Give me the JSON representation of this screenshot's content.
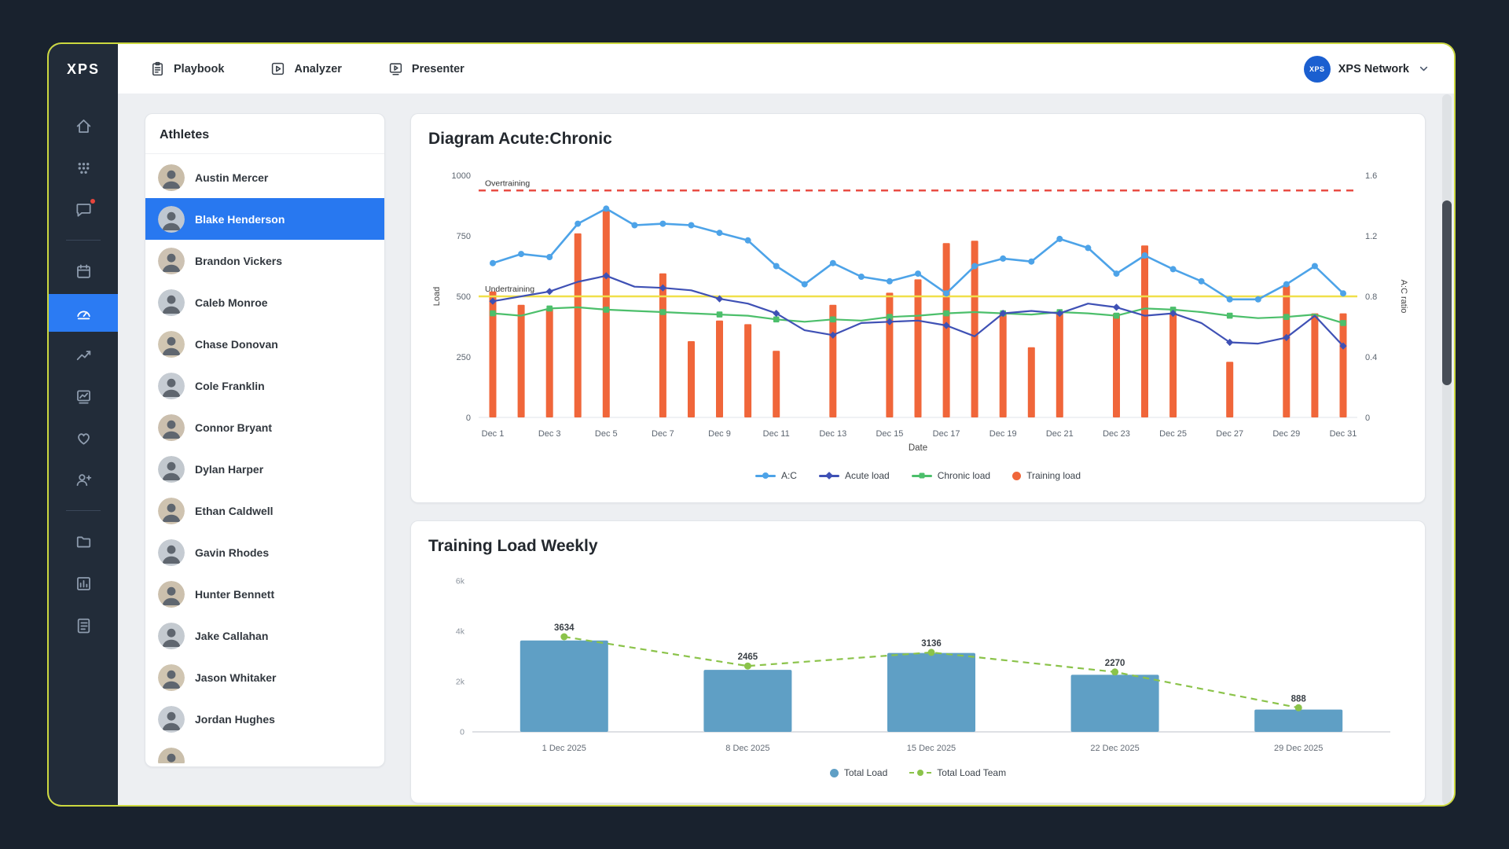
{
  "app": {
    "logo_text": "XPS",
    "account_label": "XPS Network",
    "account_logo_text": "XPS"
  },
  "theme": {
    "accent_blue": "#2878f0",
    "sidebar_dark": "#222c39",
    "window_border": "#ccd83f"
  },
  "topbar": {
    "tabs": [
      {
        "label": "Playbook",
        "icon": "playbook-icon"
      },
      {
        "label": "Analyzer",
        "icon": "analyzer-icon"
      },
      {
        "label": "Presenter",
        "icon": "presenter-icon"
      }
    ]
  },
  "sidebar": {
    "items": [
      {
        "icon": "home-icon"
      },
      {
        "icon": "team-icon"
      },
      {
        "icon": "chat-icon",
        "badge": true
      },
      {
        "divider": true
      },
      {
        "icon": "calendar-icon"
      },
      {
        "icon": "dashboard-icon",
        "active": true
      },
      {
        "icon": "trend-icon"
      },
      {
        "icon": "chart-board-icon"
      },
      {
        "icon": "health-icon"
      },
      {
        "icon": "add-user-icon"
      },
      {
        "divider": true
      },
      {
        "icon": "folder-icon"
      },
      {
        "icon": "bar-chart-icon"
      },
      {
        "icon": "checklist-icon"
      }
    ]
  },
  "athletes": {
    "title": "Athletes",
    "selected_index": 1,
    "items": [
      "Austin Mercer",
      "Blake Henderson",
      "Brandon Vickers",
      "Caleb Monroe",
      "Chase Donovan",
      "Cole Franklin",
      "Connor Bryant",
      "Dylan Harper",
      "Ethan Caldwell",
      "Gavin Rhodes",
      "Hunter Bennett",
      "Jake Callahan",
      "Jason Whitaker",
      "Jordan Hughes"
    ]
  },
  "chart_data": [
    {
      "type": "combo",
      "title": "Diagram Acute:Chronic",
      "xlabel": "Date",
      "ylabel_left": "Load",
      "ylabel_right": "A:C ratio",
      "ylim_left": [
        0,
        1000
      ],
      "yticks_left": [
        0,
        250,
        500,
        750,
        1000
      ],
      "ylim_right": [
        0,
        1.6
      ],
      "yticks_right": [
        0,
        0.4,
        0.8,
        1.2,
        1.6
      ],
      "n_days": 31,
      "x_labels": [
        "Dec 1",
        "Dec 3",
        "Dec 5",
        "Dec 7",
        "Dec 9",
        "Dec 11",
        "Dec 13",
        "Dec 15",
        "Dec 17",
        "Dec 19",
        "Dec 21",
        "Dec 23",
        "Dec 25",
        "Dec 27",
        "Dec 29",
        "Dec 31"
      ],
      "series": [
        {
          "name": "A:C",
          "type": "line",
          "axis": "right",
          "marker": "circle",
          "color": "#4da3e8",
          "values": [
            1.02,
            1.08,
            1.06,
            1.28,
            1.38,
            1.27,
            1.28,
            1.27,
            1.22,
            1.17,
            1.0,
            0.88,
            1.02,
            0.93,
            0.9,
            0.95,
            0.82,
            1.0,
            1.05,
            1.03,
            1.18,
            1.12,
            0.95,
            1.07,
            0.98,
            0.9,
            0.78,
            0.78,
            0.88,
            1.0,
            0.82
          ]
        },
        {
          "name": "Acute load",
          "type": "line",
          "axis": "left",
          "marker": "diamond",
          "color": "#3f51b5",
          "values": [
            480,
            500,
            520,
            560,
            585,
            540,
            535,
            525,
            490,
            470,
            430,
            360,
            340,
            390,
            395,
            400,
            380,
            335,
            430,
            440,
            430,
            470,
            455,
            420,
            430,
            390,
            310,
            305,
            330,
            420,
            295
          ]
        },
        {
          "name": "Chronic load",
          "type": "line",
          "axis": "left",
          "marker": "square",
          "color": "#4cbf6b",
          "values": [
            430,
            420,
            450,
            455,
            445,
            440,
            435,
            430,
            425,
            420,
            405,
            395,
            405,
            400,
            415,
            420,
            430,
            435,
            430,
            425,
            435,
            430,
            420,
            450,
            445,
            435,
            420,
            410,
            415,
            425,
            390
          ]
        },
        {
          "name": "Training load",
          "type": "bar",
          "axis": "left",
          "color": "#f0663a",
          "values": [
            520,
            465,
            450,
            760,
            855,
            0,
            595,
            315,
            400,
            385,
            275,
            0,
            465,
            0,
            515,
            570,
            720,
            730,
            430,
            290,
            430,
            0,
            430,
            710,
            430,
            0,
            230,
            0,
            545,
            430,
            430
          ]
        }
      ],
      "reference_lines": [
        {
          "label": "Overtraining",
          "value": 1.5,
          "axis": "right",
          "color": "#e8453c",
          "style": "dashed"
        },
        {
          "label": "Undertraining",
          "value": 0.8,
          "axis": "right",
          "color": "#f0e04a",
          "style": "solid"
        }
      ],
      "legend": [
        "A:C",
        "Acute load",
        "Chronic load",
        "Training load"
      ]
    },
    {
      "type": "bar",
      "title": "Training Load Weekly",
      "categories": [
        "1 Dec 2025",
        "8 Dec 2025",
        "15 Dec 2025",
        "22 Dec 2025",
        "29 Dec 2025"
      ],
      "ylim": [
        0,
        6000
      ],
      "ytick_values": [
        0,
        2000,
        4000,
        6000
      ],
      "ytick_labels": [
        "0",
        "2k",
        "4k",
        "6k"
      ],
      "series": [
        {
          "name": "Total Load",
          "type": "bar",
          "color": "#5f9fc5",
          "values": [
            3634,
            2465,
            3136,
            2270,
            888
          ]
        },
        {
          "name": "Total Load Team",
          "type": "line",
          "style": "dashed",
          "marker": "circle",
          "color": "#8bc34a",
          "values": [
            3780,
            2620,
            3160,
            2380,
            960
          ]
        }
      ],
      "data_labels": [
        "3634",
        "2465",
        "3136",
        "2270",
        "888"
      ],
      "legend": [
        "Total Load",
        "Total Load Team"
      ]
    }
  ]
}
